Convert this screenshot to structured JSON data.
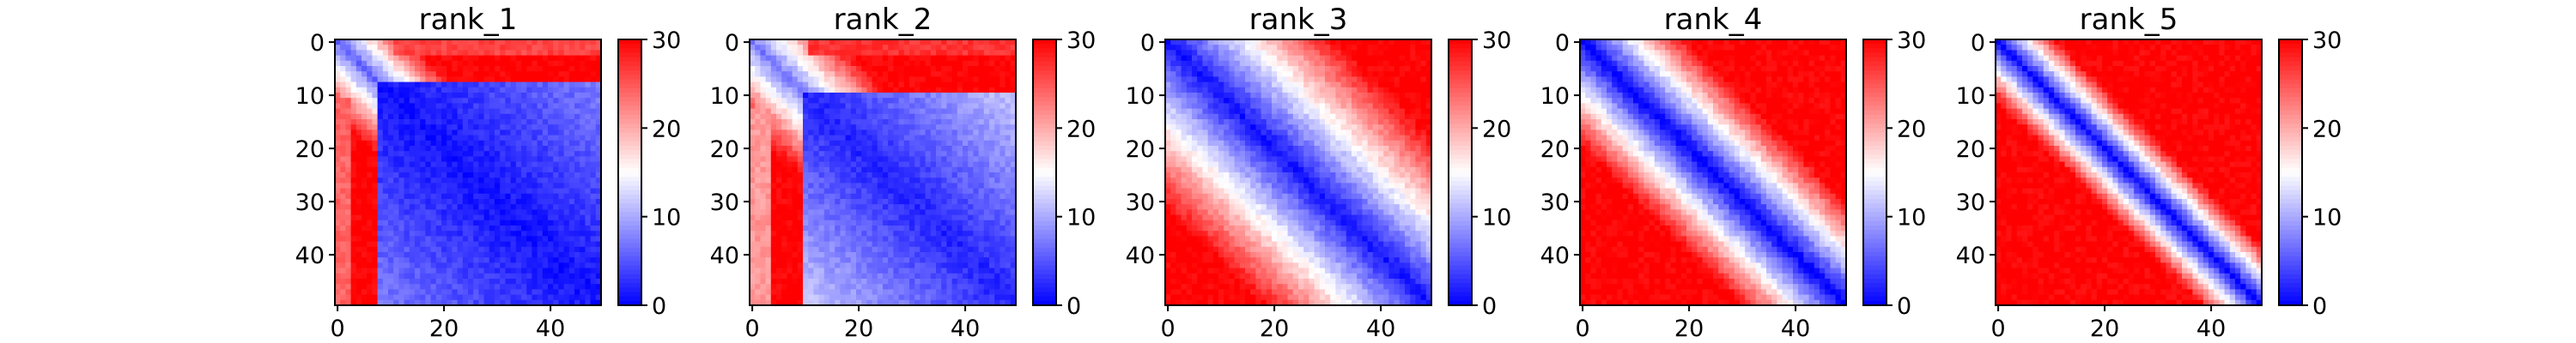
{
  "chart_data": [
    {
      "type": "heatmap",
      "title": "rank_1",
      "xlabel": "",
      "ylabel": "",
      "size": 50,
      "x_ticks": [
        "0",
        "20",
        "40"
      ],
      "y_ticks": [
        "0",
        "10",
        "20",
        "30",
        "40"
      ],
      "colorbar": {
        "colormap": "bwr",
        "vmin": 0,
        "vmax": 30,
        "ticks": [
          "0",
          "10",
          "20",
          "30"
        ]
      },
      "pattern": {
        "profile": "rank_1",
        "band_halfwidth": 8,
        "peak": 30,
        "diag": 1,
        "cross": 3
      }
    },
    {
      "type": "heatmap",
      "title": "rank_2",
      "xlabel": "",
      "ylabel": "",
      "size": 50,
      "x_ticks": [
        "0",
        "20",
        "40"
      ],
      "y_ticks": [
        "0",
        "10",
        "20",
        "30",
        "40"
      ],
      "colorbar": {
        "colormap": "bwr",
        "vmin": 0,
        "vmax": 30,
        "ticks": [
          "0",
          "10",
          "20",
          "30"
        ]
      },
      "pattern": {
        "profile": "rank_2",
        "band_halfwidth": 10,
        "peak": 30,
        "diag": 1,
        "cross": 5
      }
    },
    {
      "type": "heatmap",
      "title": "rank_3",
      "xlabel": "",
      "ylabel": "",
      "size": 50,
      "x_ticks": [
        "0",
        "20",
        "40"
      ],
      "y_ticks": [
        "0",
        "10",
        "20",
        "30",
        "40"
      ],
      "colorbar": {
        "colormap": "bwr",
        "vmin": 0,
        "vmax": 30,
        "ticks": [
          "0",
          "10",
          "20",
          "30"
        ]
      },
      "pattern": {
        "profile": "rank_3",
        "band_halfwidth": 13,
        "peak": 30,
        "diag": 1,
        "cross": 0
      }
    },
    {
      "type": "heatmap",
      "title": "rank_4",
      "xlabel": "",
      "ylabel": "",
      "size": 50,
      "x_ticks": [
        "0",
        "20",
        "40"
      ],
      "y_ticks": [
        "0",
        "10",
        "20",
        "30",
        "40"
      ],
      "colorbar": {
        "colormap": "bwr",
        "vmin": 0,
        "vmax": 30,
        "ticks": [
          "0",
          "10",
          "20",
          "30"
        ]
      },
      "pattern": {
        "profile": "rank_4",
        "band_halfwidth": 9,
        "peak": 30,
        "diag": 0,
        "cross": 0
      }
    },
    {
      "type": "heatmap",
      "title": "rank_5",
      "xlabel": "",
      "ylabel": "",
      "size": 50,
      "x_ticks": [
        "0",
        "20",
        "40"
      ],
      "y_ticks": [
        "0",
        "10",
        "20",
        "30",
        "40"
      ],
      "colorbar": {
        "colormap": "bwr",
        "vmin": 0,
        "vmax": 30,
        "ticks": [
          "0",
          "10",
          "20",
          "30"
        ]
      },
      "pattern": {
        "profile": "rank_5",
        "band_halfwidth": 6,
        "peak": 30,
        "diag": 0,
        "cross": 0
      }
    }
  ]
}
